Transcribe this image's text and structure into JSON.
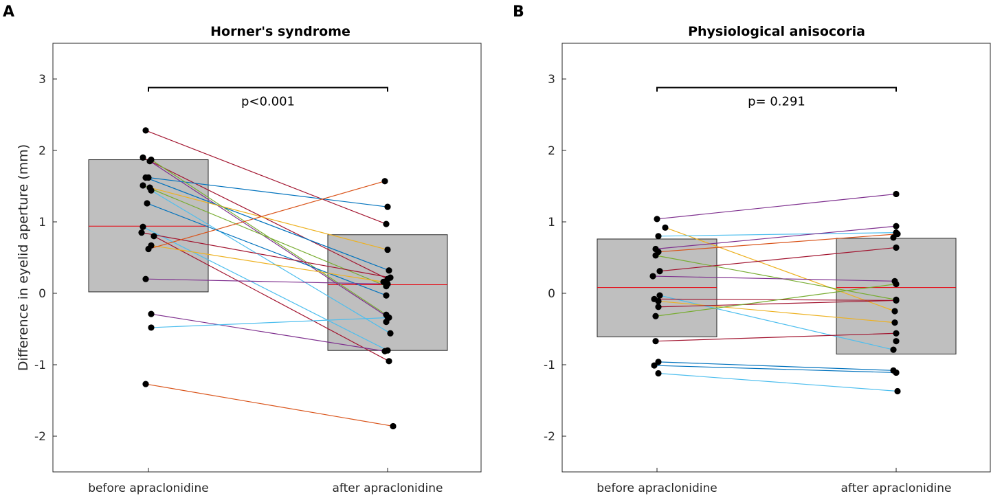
{
  "figure": {
    "ylabel": "Difference in eyelid aperture (mm)",
    "colors": {
      "box": "#bfbfbf",
      "box_edge": "#262626",
      "median": "#e8000b",
      "point": "#000000",
      "bracket": "#000000",
      "line_palette": [
        "#0072bd",
        "#d95319",
        "#edb120",
        "#7e2f8e",
        "#77ac30",
        "#4dbeee",
        "#a2142f"
      ]
    }
  },
  "chart_data": [
    {
      "type": "box-paired",
      "panel_label": "A",
      "title": "Horner's syndrome",
      "xlabel": "",
      "ylabel": "Difference in eyelid aperture (mm)",
      "categories": [
        "before apraclonidine",
        "after apraclonidine"
      ],
      "ylim": [
        -2.5,
        3.5
      ],
      "yticks": [
        -2,
        -1,
        0,
        1,
        2,
        3
      ],
      "yticklabels": [
        "-2",
        "-1",
        "0",
        "1",
        "2",
        "3"
      ],
      "boxes": [
        {
          "category": "before apraclonidine",
          "q1": 0.02,
          "median": 0.94,
          "q3": 1.87
        },
        {
          "category": "after apraclonidine",
          "q1": -0.8,
          "median": 0.12,
          "q3": 0.82
        }
      ],
      "comparison": {
        "label": "p<0.001",
        "y": 2.88
      },
      "pairs": [
        {
          "before": 2.28,
          "after": 0.97,
          "color": "#a2142f",
          "jb": -0.02,
          "ja": -0.01
        },
        {
          "before": 1.9,
          "after": 0.2,
          "color": "#a2142f",
          "jb": -0.04,
          "ja": 0.0
        },
        {
          "before": 1.85,
          "after": -0.33,
          "color": "#7e2f8e",
          "jb": 0.01,
          "ja": 0.0
        },
        {
          "before": 1.62,
          "after": 1.21,
          "color": "#0072bd",
          "jb": 0.0,
          "ja": 0.0
        },
        {
          "before": 1.62,
          "after": 0.32,
          "color": "#0072bd",
          "jb": -0.02,
          "ja": 0.01
        },
        {
          "before": 1.51,
          "after": 0.1,
          "color": "#77ac30",
          "jb": -0.04,
          "ja": -0.01
        },
        {
          "before": 1.48,
          "after": 0.61,
          "color": "#edb120",
          "jb": 0.01,
          "ja": 0.0
        },
        {
          "before": 1.44,
          "after": -0.56,
          "color": "#4dbeee",
          "jb": 0.02,
          "ja": 0.02
        },
        {
          "before": 1.87,
          "after": -0.3,
          "color": "#77ac30",
          "jb": 0.02,
          "ja": -0.01
        },
        {
          "before": 1.26,
          "after": -0.03,
          "color": "#0072bd",
          "jb": -0.01,
          "ja": -0.01
        },
        {
          "before": 0.93,
          "after": -0.8,
          "color": "#4dbeee",
          "jb": -0.04,
          "ja": 0.0
        },
        {
          "before": 0.85,
          "after": 0.22,
          "color": "#a2142f",
          "jb": -0.05,
          "ja": 0.02
        },
        {
          "before": 0.8,
          "after": -0.95,
          "color": "#a2142f",
          "jb": 0.04,
          "ja": 0.01
        },
        {
          "before": 0.67,
          "after": 0.16,
          "color": "#edb120",
          "jb": 0.02,
          "ja": -0.03
        },
        {
          "before": 0.62,
          "after": 1.57,
          "color": "#d95319",
          "jb": 0.0,
          "ja": -0.02
        },
        {
          "before": 0.2,
          "after": 0.13,
          "color": "#7e2f8e",
          "jb": -0.02,
          "ja": 0.0
        },
        {
          "before": -0.29,
          "after": -0.81,
          "color": "#7e2f8e",
          "jb": 0.02,
          "ja": -0.02
        },
        {
          "before": -0.48,
          "after": -0.34,
          "color": "#4dbeee",
          "jb": 0.02,
          "ja": 0.01
        },
        {
          "before": -1.27,
          "after": -1.86,
          "color": "#d95319",
          "jb": -0.02,
          "ja": 0.04
        },
        {
          "before": null,
          "after": -0.4,
          "color": "#77ac30",
          "jb": 0.0,
          "ja": -0.01
        }
      ]
    },
    {
      "type": "box-paired",
      "panel_label": "B",
      "title": "Physiological anisocoria",
      "xlabel": "",
      "ylabel": "",
      "categories": [
        "before apraclonidine",
        "after apraclonidine"
      ],
      "ylim": [
        -2.5,
        3.5
      ],
      "yticks": [
        -2,
        -1,
        0,
        1,
        2,
        3
      ],
      "yticklabels": [
        "-2",
        "-1",
        "0",
        "1",
        "2",
        "3"
      ],
      "boxes": [
        {
          "category": "before apraclonidine",
          "q1": -0.61,
          "median": 0.08,
          "q3": 0.76
        },
        {
          "category": "after apraclonidine",
          "q1": -0.85,
          "median": 0.08,
          "q3": 0.77
        }
      ],
      "comparison": {
        "label": "p= 0.291",
        "y": 2.88
      },
      "pairs": [
        {
          "before": 1.04,
          "after": 1.39,
          "color": "#7e2f8e",
          "jb": 0.0,
          "ja": 0.0
        },
        {
          "before": 0.92,
          "after": -0.25,
          "color": "#edb120",
          "jb": 0.06,
          "ja": -0.01
        },
        {
          "before": 0.8,
          "after": 0.85,
          "color": "#4dbeee",
          "jb": 0.01,
          "ja": 0.0
        },
        {
          "before": 0.62,
          "after": 0.94,
          "color": "#7e2f8e",
          "jb": -0.01,
          "ja": 0.0
        },
        {
          "before": 0.58,
          "after": 0.83,
          "color": "#d95319",
          "jb": 0.01,
          "ja": 0.01
        },
        {
          "before": 0.53,
          "after": -0.09,
          "color": "#77ac30",
          "jb": -0.01,
          "ja": 0.0
        },
        {
          "before": 0.31,
          "after": 0.64,
          "color": "#a2142f",
          "jb": 0.02,
          "ja": 0.0
        },
        {
          "before": 0.24,
          "after": 0.17,
          "color": "#7e2f8e",
          "jb": -0.03,
          "ja": -0.01
        },
        {
          "before": -0.03,
          "after": -0.79,
          "color": "#4dbeee",
          "jb": 0.02,
          "ja": -0.02
        },
        {
          "before": -0.08,
          "after": -0.1,
          "color": "#a2142f",
          "jb": -0.02,
          "ja": 0.0
        },
        {
          "before": -0.11,
          "after": -0.41,
          "color": "#edb120",
          "jb": 0.01,
          "ja": -0.01
        },
        {
          "before": -0.19,
          "after": -0.1,
          "color": "#a2142f",
          "jb": 0.01,
          "ja": 0.0
        },
        {
          "before": -0.32,
          "after": 0.13,
          "color": "#77ac30",
          "jb": -0.01,
          "ja": 0.0
        },
        {
          "before": -0.67,
          "after": -0.56,
          "color": "#a2142f",
          "jb": -0.01,
          "ja": 0.0
        },
        {
          "before": -0.96,
          "after": -1.08,
          "color": "#0072bd",
          "jb": 0.01,
          "ja": -0.02
        },
        {
          "before": -1.01,
          "after": -1.11,
          "color": "#0072bd",
          "jb": -0.02,
          "ja": 0.0
        },
        {
          "before": -1.12,
          "after": -1.37,
          "color": "#4dbeee",
          "jb": 0.01,
          "ja": 0.01
        },
        {
          "before": null,
          "after": -0.67,
          "color": "#77ac30",
          "jb": 0.0,
          "ja": 0.0
        },
        {
          "before": null,
          "after": 0.78,
          "color": "#77ac30",
          "jb": 0.0,
          "ja": -0.02
        },
        {
          "before": null,
          "after": -1.11,
          "color": "#0072bd",
          "jb": 0.0,
          "ja": 0.0
        }
      ]
    }
  ]
}
